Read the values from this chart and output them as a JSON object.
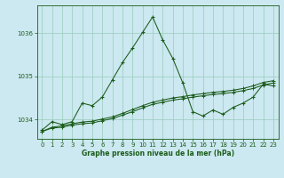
{
  "title": "Graphe pression niveau de la mer (hPa)",
  "background_color": "#cce8f0",
  "grid_color": "#99ccbb",
  "line_color": "#1a5c1a",
  "ylim": [
    1033.55,
    1036.65
  ],
  "xlim": [
    -0.5,
    23.5
  ],
  "yticks": [
    1034,
    1035,
    1036
  ],
  "xticks": [
    0,
    1,
    2,
    3,
    4,
    5,
    6,
    7,
    8,
    9,
    10,
    11,
    12,
    13,
    14,
    15,
    16,
    17,
    18,
    19,
    20,
    21,
    22,
    23
  ],
  "main_x": [
    0,
    1,
    2,
    3,
    4,
    5,
    6,
    7,
    8,
    9,
    10,
    11,
    12,
    13,
    14,
    15,
    16,
    17,
    18,
    19,
    20,
    21,
    22,
    23
  ],
  "main_y": [
    1033.75,
    1033.95,
    1033.88,
    1033.95,
    1034.38,
    1034.32,
    1034.52,
    1034.92,
    1035.32,
    1035.66,
    1036.02,
    1036.38,
    1035.85,
    1035.42,
    1034.85,
    1034.18,
    1034.08,
    1034.22,
    1034.12,
    1034.28,
    1034.38,
    1034.52,
    1034.82,
    1034.78
  ],
  "trend1_x": [
    0,
    1,
    2,
    3,
    4,
    5,
    6,
    7,
    8,
    9,
    10,
    11,
    12,
    13,
    14,
    15,
    16,
    17,
    18,
    19,
    20,
    21,
    22,
    23
  ],
  "trend1_y": [
    1033.72,
    1033.8,
    1033.82,
    1033.87,
    1033.9,
    1033.92,
    1033.97,
    1034.02,
    1034.1,
    1034.18,
    1034.27,
    1034.35,
    1034.4,
    1034.45,
    1034.48,
    1034.52,
    1034.55,
    1034.58,
    1034.6,
    1034.63,
    1034.67,
    1034.72,
    1034.8,
    1034.85
  ],
  "trend2_x": [
    0,
    1,
    2,
    3,
    4,
    5,
    6,
    7,
    8,
    9,
    10,
    11,
    12,
    13,
    14,
    15,
    16,
    17,
    18,
    19,
    20,
    21,
    22,
    23
  ],
  "trend2_y": [
    1033.72,
    1033.82,
    1033.85,
    1033.9,
    1033.94,
    1033.96,
    1034.01,
    1034.06,
    1034.14,
    1034.23,
    1034.32,
    1034.4,
    1034.45,
    1034.5,
    1034.53,
    1034.57,
    1034.6,
    1034.63,
    1034.65,
    1034.68,
    1034.72,
    1034.78,
    1034.86,
    1034.9
  ]
}
